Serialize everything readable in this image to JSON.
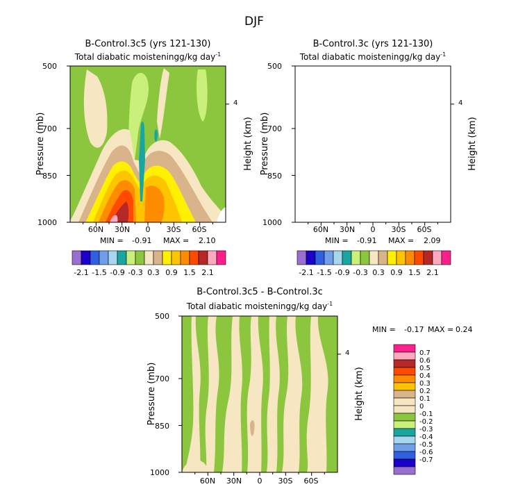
{
  "figure_title": "DJF",
  "colors": {
    "minus_2_1": "#9a6fd2",
    "minus_1_8": "#1a00c8",
    "minus_1_5": "#3060e0",
    "minus_1_2": "#6f9fe8",
    "minus_0_9": "#a8d6ee",
    "minus_0_6": "#1aa6a0",
    "minus_0_3": "#c8f07a",
    "minus_0_0": "#8cc63e",
    "plus_0_0": "#f6e6c2",
    "plus_0_3": "#d9b48a",
    "plus_0_6": "#fff000",
    "plus_0_9": "#ffc400",
    "plus_1_2": "#ff8c00",
    "plus_1_5": "#ff4a00",
    "plus_1_8": "#b42828",
    "plus_2_1": "#ffa8c0",
    "top": "#ff1f8c"
  },
  "chart_data": [
    {
      "type": "heatmap",
      "title": "B-Control.3c5 (yrs 121-130)",
      "subtitle": "Total diabatic moistening",
      "units": "g/kg day",
      "units_exp": "-1",
      "xlabel": "",
      "ylabel": "Pressure (mb)",
      "ylabel_right": "Height (km)",
      "x_ticks": [
        "60N",
        "30N",
        "0",
        "30S",
        "60S"
      ],
      "x_tick_values": [
        60,
        30,
        0,
        -30,
        -60
      ],
      "xlim": [
        90,
        -90
      ],
      "y_ticks": [
        "500",
        "700",
        "850",
        "1000"
      ],
      "y_tick_values": [
        500,
        700,
        850,
        1000
      ],
      "ylim": [
        500,
        1000
      ],
      "right_ticks": [
        "4"
      ],
      "right_tick_values": [
        4
      ],
      "min_label": "MIN =",
      "min": "-0.91",
      "max_label": "MAX =",
      "max": "2.10",
      "legend_levels": [
        "-2.1",
        "-1.5",
        "-0.9",
        "-0.3",
        "0.3",
        "0.9",
        "1.5",
        "2.1"
      ]
    },
    {
      "type": "heatmap",
      "title": "B-Control.3c (yrs 121-130)",
      "subtitle": "Total diabatic moistening",
      "units": "g/kg day",
      "units_exp": "-1",
      "xlabel": "",
      "ylabel": "Pressure (mb)",
      "ylabel_right": "Height (km)",
      "x_ticks": [
        "60N",
        "30N",
        "0",
        "30S",
        "60S"
      ],
      "x_tick_values": [
        60,
        30,
        0,
        -30,
        -60
      ],
      "xlim": [
        90,
        -90
      ],
      "y_ticks": [
        "500",
        "700",
        "850",
        "1000"
      ],
      "y_tick_values": [
        500,
        700,
        850,
        1000
      ],
      "ylim": [
        500,
        1000
      ],
      "right_ticks": [
        "4"
      ],
      "right_tick_values": [
        4
      ],
      "min_label": "MIN =",
      "min": "-0.91",
      "max_label": "MAX =",
      "max": "2.09",
      "legend_levels": [
        "-2.1",
        "-1.5",
        "-0.9",
        "-0.3",
        "0.3",
        "0.9",
        "1.5",
        "2.1"
      ]
    },
    {
      "type": "heatmap",
      "title": "B-Control.3c5 - B-Control.3c",
      "subtitle": "Total diabatic moistening",
      "units": "g/kg day",
      "units_exp": "-1",
      "xlabel": "",
      "ylabel": "Pressure (mb)",
      "ylabel_right": "Height (km)",
      "x_ticks": [
        "60N",
        "30N",
        "0",
        "30S",
        "60S"
      ],
      "x_tick_values": [
        60,
        30,
        0,
        -30,
        -60
      ],
      "xlim": [
        90,
        -90
      ],
      "y_ticks": [
        "500",
        "700",
        "850",
        "1000"
      ],
      "y_tick_values": [
        500,
        700,
        850,
        1000
      ],
      "ylim": [
        500,
        1000
      ],
      "right_ticks": [
        "4"
      ],
      "right_tick_values": [
        4
      ],
      "min_label": "MIN =",
      "min": "-0.17",
      "max_label": "MAX =",
      "max": "0.24",
      "legend_levels": [
        "0.7",
        "0.6",
        "0.5",
        "0.4",
        "0.3",
        "0.2",
        "0.1",
        "0",
        "-0.1",
        "-0.2",
        "-0.3",
        "-0.4",
        "-0.5",
        "-0.6",
        "-0.7"
      ]
    }
  ]
}
